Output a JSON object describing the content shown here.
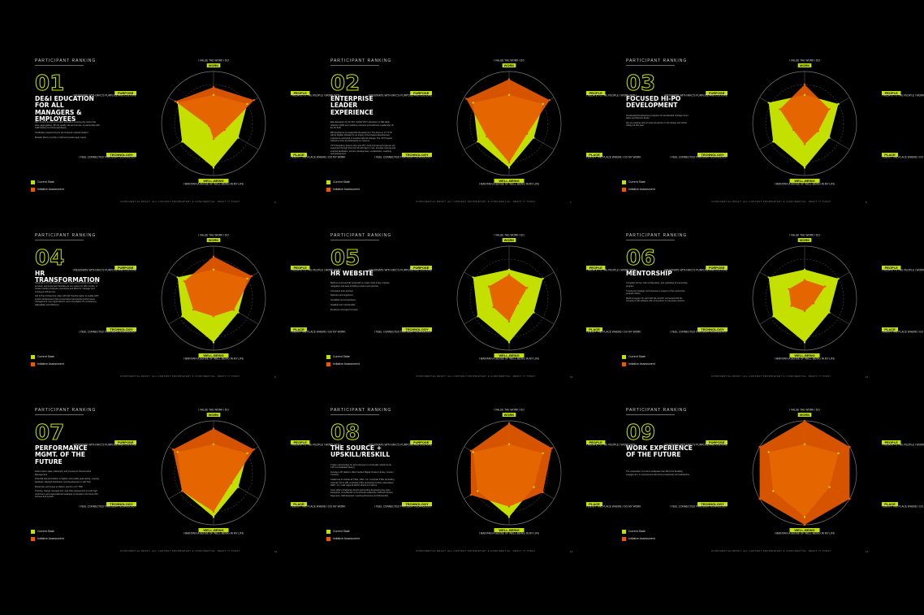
{
  "common": {
    "kicker": "PARTICIPANT RANKING",
    "legend": {
      "current_label": "Current State",
      "initiative_label": "Initiative Assessment"
    },
    "footer": "CONFIDENTIAL DRAFT. ALL CONTENT PROPRIETARY & CONFIDENTIAL. DRAFT IT TODAY.",
    "axis_headers": [
      "WORK",
      "PEOPLE",
      "PLACE",
      "WELL-BEING",
      "TECHNOLOGY",
      "PURPOSE"
    ],
    "axis_sublabels": [
      "I VALUE THE WORK I DO",
      "I RELATE TO THE PEOPLE I WORK WITH",
      "I ENJOY THE PLACE WHERE I DO MY WORK",
      "I MAINTAIN A SENSE OF WELL-BEING IN MY LIFE",
      "I FEEL CONNECTED THROUGH TECHNOLOGY",
      "I RESONATE WITH MKC'S PURPOSE AND CULTURE"
    ],
    "colors": {
      "current": "#c3e000",
      "initiative": "#e85a00",
      "overlap": "#f07800"
    }
  },
  "chart_data": [
    {
      "type": "radar",
      "number": "01",
      "title": "DE&I EDUCATION FOR ALL MANAGERS & EMPLOYEES",
      "page": "6",
      "bullets": [
        "Mkc content at and up to DE&I education covering key topics that drive aggregations. 9P Act quality rule and remote, in partnership with SHR Society for Personnel Equity",
        "Certificate programming for all employee network leaders",
        "Broader library monthly on DEI and social equity topics"
      ],
      "axes": [
        "WORK",
        "PEOPLE",
        "PLACE",
        "WELL-BEING",
        "TECHNOLOGY",
        "PURPOSE"
      ],
      "series": [
        {
          "name": "Current State",
          "values": [
            0.55,
            0.75,
            0.55,
            0.85,
            0.7,
            0.8
          ]
        },
        {
          "name": "Initiative Assessment",
          "values": [
            0.7,
            0.9,
            0.25,
            0.3,
            0.1,
            0.85
          ]
        }
      ]
    },
    {
      "type": "radar",
      "number": "02",
      "title": "ENTERPRISE LEADER EXPERIENCE",
      "page": "7",
      "bullets": [
        "Elite Education for all VPs, Global VPLT education on DEI skills, reflection (ERI) and modeling inclusive and authentic Leadership (P-EL 10 Tool).",
        "BPI Excellence & Leadership Development: The focus in CY ITYD will be Digital, followed by an inquiry cohort-based development experience anchored in transformational change. The VP Program trained to drive all participants on campus.",
        "VP Onboarding: Ensure that new VP's, both internal and external, are supported through their first 90-120 days in role. Includes internal and external facilitation, content, development, socialization, coaching and assessment."
      ],
      "axes": [
        "WORK",
        "PEOPLE",
        "PLACE",
        "WELL-BEING",
        "TECHNOLOGY",
        "PURPOSE"
      ],
      "series": [
        {
          "name": "Current State",
          "values": [
            0.55,
            0.75,
            0.55,
            0.85,
            0.7,
            0.8
          ]
        },
        {
          "name": "Initiative Assessment",
          "values": [
            0.85,
            0.9,
            0.4,
            0.75,
            0.5,
            0.95
          ]
        }
      ]
    },
    {
      "type": "radar",
      "number": "03",
      "title": "FOCUSED HI-PO DEVELOPMENT",
      "page": "8",
      "bullets": [
        "Accelerated Development programs for accelerated manager-level talent and Director levels.",
        "We are working with an external partner on the design and will be rolling out this year."
      ],
      "axes": [
        "WORK",
        "PEOPLE",
        "PLACE",
        "WELL-BEING",
        "TECHNOLOGY",
        "PURPOSE"
      ],
      "series": [
        {
          "name": "Current State",
          "values": [
            0.55,
            0.75,
            0.55,
            0.85,
            0.7,
            0.8
          ]
        },
        {
          "name": "Initiative Assessment",
          "values": [
            0.75,
            0.55,
            0.3,
            0.4,
            0.25,
            0.55
          ]
        }
      ]
    },
    {
      "type": "radar",
      "number": "04",
      "title": "HR TRANSFORMATION",
      "page": "9",
      "bullets": [
        "Streamline our HR operating model, have we providing better, faster services, and implement Workday as our system for HR records, to create a better employee experience and allow for manager and employee self-service.",
        "Job & Pay Architecture: Align with HR Transformation to enable HRT system development that incorporates frameworks (performance management, pay organizations, and a foundation for consistency, adaptability and efficiency."
      ],
      "axes": [
        "WORK",
        "PEOPLE",
        "PLACE",
        "WELL-BEING",
        "TECHNOLOGY",
        "PURPOSE"
      ],
      "series": [
        {
          "name": "Current State",
          "values": [
            0.55,
            0.75,
            0.55,
            0.85,
            0.7,
            0.8
          ]
        },
        {
          "name": "Initiative Assessment",
          "values": [
            0.8,
            0.85,
            0.45,
            0.35,
            0.45,
            0.65
          ]
        }
      ]
    },
    {
      "type": "radar",
      "number": "05",
      "title": "HR WEBSITE",
      "page": "10",
      "bullets": [
        "Build an improved HR portal with a modern look & feel, intuitive navigation and ease of finding content and services.",
        "Consistent look and feel",
        "Relevant and organized",
        "Simplified and streamlined",
        "Scalable and maintainable",
        "Employee and agent focused"
      ],
      "axes": [
        "WORK",
        "PEOPLE",
        "PLACE",
        "WELL-BEING",
        "TECHNOLOGY",
        "PURPOSE"
      ],
      "series": [
        {
          "name": "Current State",
          "values": [
            0.55,
            0.75,
            0.55,
            0.85,
            0.7,
            0.8
          ]
        },
        {
          "name": "Initiative Assessment",
          "values": [
            0.45,
            0.4,
            0.2,
            0.45,
            0.35,
            0.45
          ]
        }
      ]
    },
    {
      "type": "radar",
      "number": "06",
      "title": "MENTORSHIP",
      "page": "11",
      "bullets": [
        "Complete roll out, with configuration, and marketing of mentorship program",
        "Training for strategic and business in support of the mentorship program rollout",
        "Build a program for each HR site and DC connected with the company's HR software with connections to corporate mentors."
      ],
      "axes": [
        "WORK",
        "PEOPLE",
        "PLACE",
        "WELL-BEING",
        "TECHNOLOGY",
        "PURPOSE"
      ],
      "series": [
        {
          "name": "Current State",
          "values": [
            0.55,
            0.75,
            0.55,
            0.85,
            0.7,
            0.8
          ]
        },
        {
          "name": "Initiative Assessment",
          "values": [
            0.35,
            0.45,
            0.2,
            0.25,
            0.3,
            0.35
          ]
        }
      ]
    },
    {
      "type": "radar",
      "number": "07",
      "title": "PERFORMANCE MGMT. OF THE FUTURE",
      "page": "12",
      "bullets": [
        "Define future state, philosophy and process for Performance Management",
        "Potential internal solution to digitize and enable goal setting, ongoing feedback, Reward Distribution and Development in HR Tech",
        "Broad plan and scope to Deliver, launch in CY TBD.",
        "Training, change management, and other assessment to tools high-performers and organizational readiness to transition into future PM process and system"
      ],
      "axes": [
        "WORK",
        "PEOPLE",
        "PLACE",
        "WELL-BEING",
        "TECHNOLOGY",
        "PURPOSE"
      ],
      "series": [
        {
          "name": "Current State",
          "values": [
            0.55,
            0.75,
            0.55,
            0.85,
            0.7,
            0.8
          ]
        },
        {
          "name": "Initiative Assessment",
          "values": [
            0.85,
            0.9,
            0.4,
            0.75,
            0.7,
            0.9
          ]
        }
      ]
    },
    {
      "type": "radar",
      "number": "08",
      "title": "THE SOURCE + UPSKILL/RESKILL",
      "page": "13",
      "bullets": [
        "Create opportunities for all employees to continually upskill via an LXP (consolidated library).",
        "Includes LXP platform (like branded Digital Content Library, Custom Content)",
        "Audiences to include all FTEs, HWC, Inc, corporate FTEs (excluding Internal), DC & HIP, corporate FTEs (excluding frontline associates), HWC, Inc, retail regional district directors & above",
        "A key pillar of Pathways brand and tending developing key rules, Enterprise, Cost Benefit to Functional Leadership, Defined Industry Segments, Skill Required: Learning Resource and Mentorship."
      ],
      "axes": [
        "WORK",
        "PEOPLE",
        "PLACE",
        "WELL-BEING",
        "TECHNOLOGY",
        "PURPOSE"
      ],
      "series": [
        {
          "name": "Current State",
          "values": [
            0.55,
            0.75,
            0.55,
            0.85,
            0.7,
            0.8
          ]
        },
        {
          "name": "Initiative Assessment",
          "values": [
            0.95,
            0.95,
            0.75,
            0.65,
            0.85,
            0.85
          ]
        }
      ]
    },
    {
      "type": "radar",
      "number": "09",
      "title": "WORK EXPERIENCE OF THE FUTURE",
      "page": "14",
      "bullets": [
        "The exploration of a future workplace that offers the flexibility, engagement, or experiences that drives productivity and satisfaction."
      ],
      "axes": [
        "WORK",
        "PEOPLE",
        "PLACE",
        "WELL-BEING",
        "TECHNOLOGY",
        "PURPOSE"
      ],
      "series": [
        {
          "name": "Current State",
          "values": [
            0.55,
            0.75,
            0.55,
            0.85,
            0.7,
            0.8
          ]
        },
        {
          "name": "Initiative Assessment",
          "values": [
            1.0,
            1.0,
            1.0,
            1.0,
            1.0,
            1.0
          ]
        }
      ]
    }
  ]
}
